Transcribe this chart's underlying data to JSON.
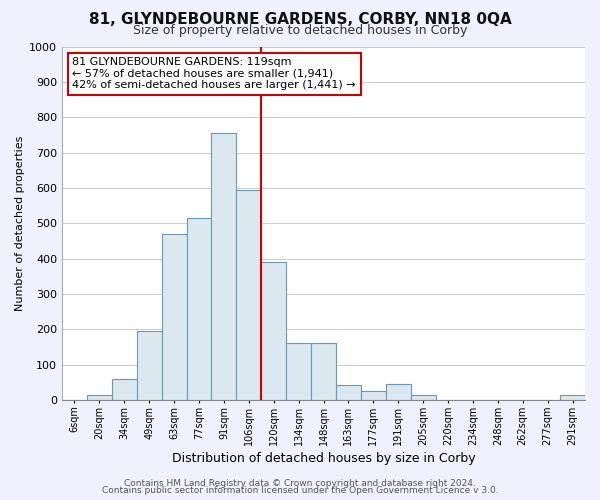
{
  "title": "81, GLYNDEBOURNE GARDENS, CORBY, NN18 0QA",
  "subtitle": "Size of property relative to detached houses in Corby",
  "xlabel": "Distribution of detached houses by size in Corby",
  "ylabel": "Number of detached properties",
  "bar_labels": [
    "6sqm",
    "20sqm",
    "34sqm",
    "49sqm",
    "63sqm",
    "77sqm",
    "91sqm",
    "106sqm",
    "120sqm",
    "134sqm",
    "148sqm",
    "163sqm",
    "177sqm",
    "191sqm",
    "205sqm",
    "220sqm",
    "234sqm",
    "248sqm",
    "262sqm",
    "277sqm",
    "291sqm"
  ],
  "bar_values": [
    0,
    13,
    60,
    195,
    470,
    515,
    755,
    595,
    390,
    160,
    160,
    43,
    25,
    45,
    13,
    0,
    0,
    0,
    0,
    0,
    13
  ],
  "bar_fill_color": "#dce8f0",
  "bar_edge_color": "#6699bb",
  "highlight_line_color": "#cc0000",
  "highlight_label": "120sqm",
  "annotation_text": "81 GLYNDEBOURNE GARDENS: 119sqm\n← 57% of detached houses are smaller (1,941)\n42% of semi-detached houses are larger (1,441) →",
  "annotation_box_facecolor": "#ffffff",
  "annotation_box_edgecolor": "#cc0000",
  "ylim": [
    0,
    1000
  ],
  "yticks": [
    0,
    100,
    200,
    300,
    400,
    500,
    600,
    700,
    800,
    900,
    1000
  ],
  "footer_line1": "Contains HM Land Registry data © Crown copyright and database right 2024.",
  "footer_line2": "Contains public sector information licensed under the Open Government Licence v 3.0.",
  "background_color": "#f0f0ff",
  "plot_background_color": "#ffffff",
  "grid_color": "#cccccc",
  "title_fontsize": 11,
  "subtitle_fontsize": 9,
  "xlabel_fontsize": 9,
  "ylabel_fontsize": 8,
  "tick_fontsize": 7,
  "annotation_fontsize": 8,
  "footer_fontsize": 6.5
}
